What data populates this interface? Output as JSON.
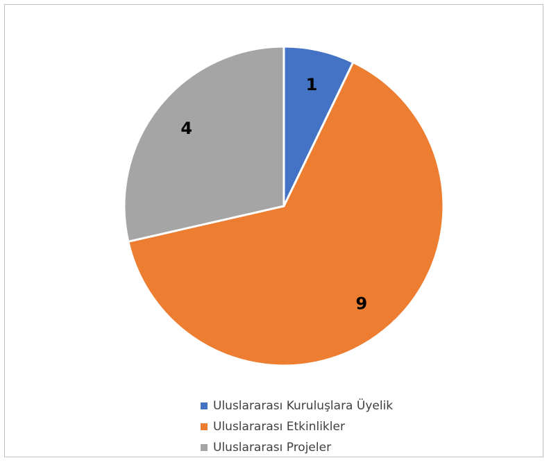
{
  "chart_data": {
    "type": "pie",
    "categories": [
      "Uluslararası Kuruluşlara Üyelik",
      "Uluslararası Etkinlikler",
      "Uluslararası Projeler"
    ],
    "values": [
      1,
      9,
      4
    ],
    "colors": [
      "#4472C4",
      "#ED7D31",
      "#A5A5A5"
    ],
    "data_labels": [
      "1",
      "9",
      "4"
    ],
    "start_angle_deg": 0,
    "direction": "clockwise",
    "legend_position": "bottom",
    "title": ""
  }
}
